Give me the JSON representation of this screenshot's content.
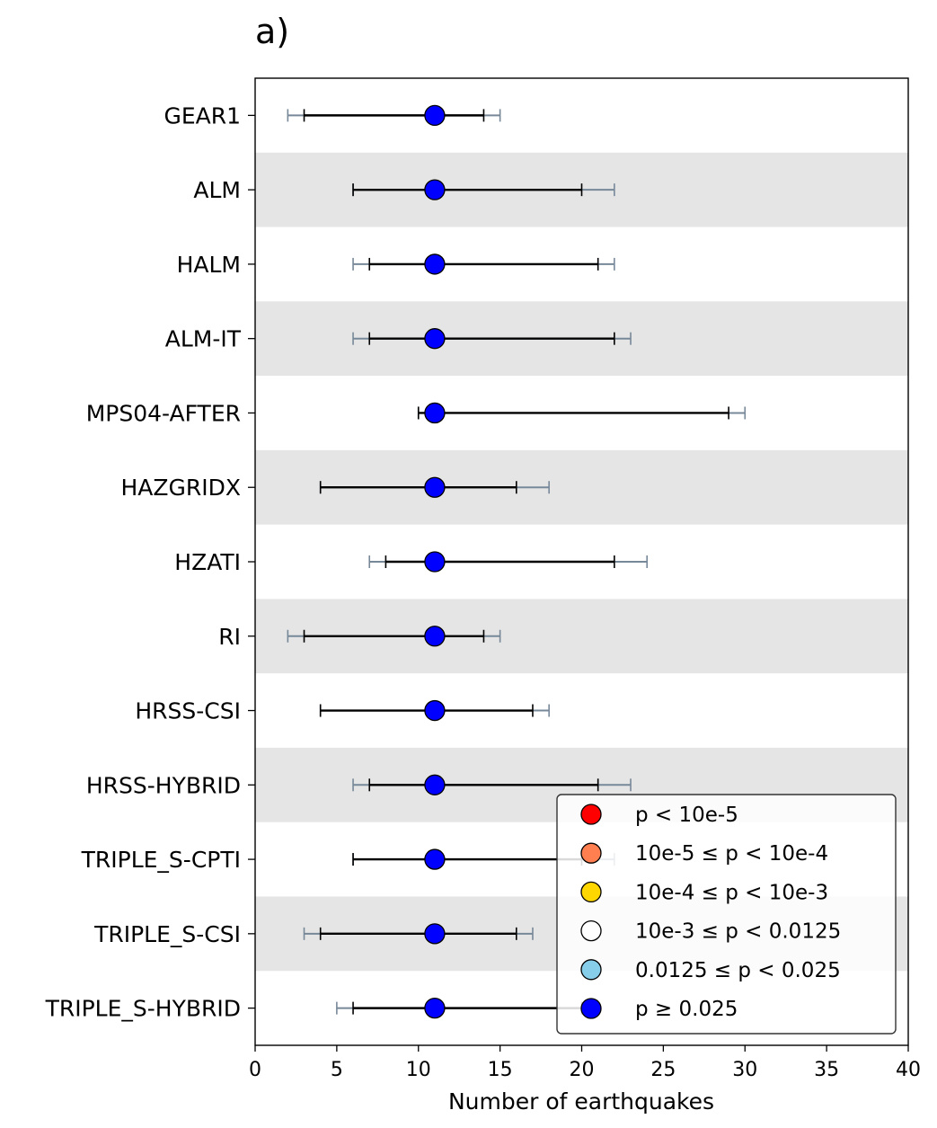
{
  "panel_label": "a)",
  "chart_data": {
    "type": "errorbar",
    "title": "a)",
    "xlabel": "Number of earthquakes",
    "ylabel": "",
    "xlim": [
      0,
      40
    ],
    "xticks": [
      0,
      5,
      10,
      15,
      20,
      25,
      30,
      35,
      40
    ],
    "grid": false,
    "alternating_row_shading": true,
    "colors": {
      "row_shade": "#e5e5e5",
      "inner_bar": "#000000",
      "outer_bar": "#778899",
      "marker_edge": "#000000"
    },
    "observed": 11,
    "models": [
      {
        "name": "GEAR1",
        "inner": [
          3,
          14
        ],
        "outer": [
          2,
          15
        ],
        "category": 5
      },
      {
        "name": "ALM",
        "inner": [
          6,
          20
        ],
        "outer": [
          6,
          22
        ],
        "category": 5
      },
      {
        "name": "HALM",
        "inner": [
          7,
          21
        ],
        "outer": [
          6,
          22
        ],
        "category": 5
      },
      {
        "name": "ALM-IT",
        "inner": [
          7,
          22
        ],
        "outer": [
          6,
          23
        ],
        "category": 5
      },
      {
        "name": "MPS04-AFTER",
        "inner": [
          10,
          29
        ],
        "outer": [
          10,
          30
        ],
        "category": 5
      },
      {
        "name": "HAZGRIDX",
        "inner": [
          4,
          16
        ],
        "outer": [
          4,
          18
        ],
        "category": 5
      },
      {
        "name": "HZATI",
        "inner": [
          8,
          22
        ],
        "outer": [
          7,
          24
        ],
        "category": 5
      },
      {
        "name": "RI",
        "inner": [
          3,
          14
        ],
        "outer": [
          2,
          15
        ],
        "category": 5
      },
      {
        "name": "HRSS-CSI",
        "inner": [
          4,
          17
        ],
        "outer": [
          4,
          18
        ],
        "category": 5
      },
      {
        "name": "HRSS-HYBRID",
        "inner": [
          7,
          21
        ],
        "outer": [
          6,
          23
        ],
        "category": 5
      },
      {
        "name": "TRIPLE_S-CPTI",
        "inner": [
          6,
          20
        ],
        "outer": [
          6,
          22
        ],
        "category": 5
      },
      {
        "name": "TRIPLE_S-CSI",
        "inner": [
          4,
          16
        ],
        "outer": [
          3,
          17
        ],
        "category": 5
      },
      {
        "name": "TRIPLE_S-HYBRID",
        "inner": [
          6,
          20
        ],
        "outer": [
          5,
          21
        ],
        "category": 5
      }
    ],
    "legend": {
      "placement": "lower right",
      "entries": [
        {
          "label": "p < 10e-5",
          "color": "#ff0000"
        },
        {
          "label": "10e-5 ≤ p < 10e-4",
          "color": "#ff7f50"
        },
        {
          "label": "10e-4 ≤ p < 10e-3",
          "color": "#ffd700"
        },
        {
          "label": "10e-3 ≤ p < 0.0125",
          "color": "#ffffff"
        },
        {
          "label": "0.0125 ≤ p < 0.025",
          "color": "#87ceeb"
        },
        {
          "label": "p ≥ 0.025",
          "color": "#0000ff"
        }
      ]
    }
  }
}
